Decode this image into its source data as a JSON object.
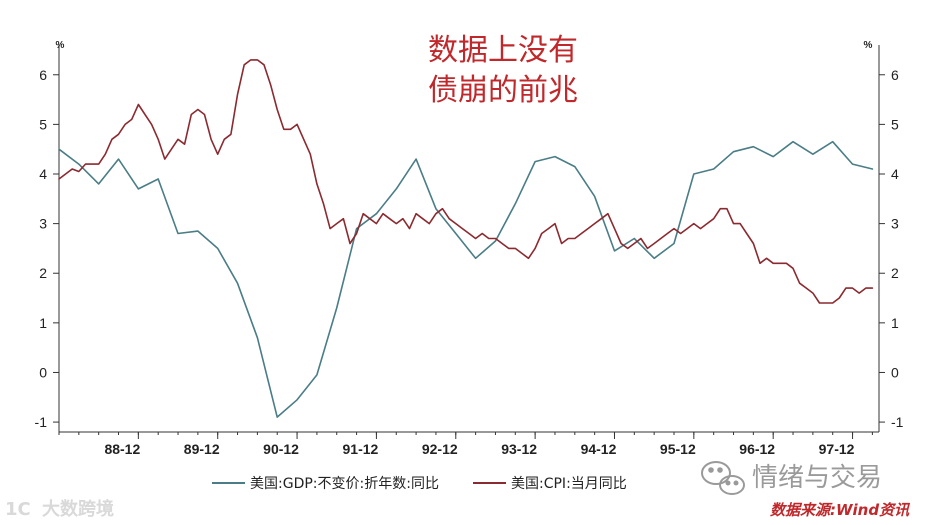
{
  "chart_data": {
    "type": "line",
    "annotation": [
      "数据上没有",
      "债崩的前兆"
    ],
    "y_unit_left": "%",
    "y_unit_right": "%",
    "ylim": [
      -1.2,
      6.6
    ],
    "yticks": [
      -1,
      0,
      1,
      2,
      3,
      4,
      5,
      6
    ],
    "xlim": [
      0,
      124
    ],
    "x_ticks": [
      {
        "label": "88-12",
        "x": 12
      },
      {
        "label": "89-12",
        "x": 24
      },
      {
        "label": "90-12",
        "x": 36
      },
      {
        "label": "91-12",
        "x": 48
      },
      {
        "label": "92-12",
        "x": 60
      },
      {
        "label": "93-12",
        "x": 72
      },
      {
        "label": "94-12",
        "x": 84
      },
      {
        "label": "95-12",
        "x": 96
      },
      {
        "label": "96-12",
        "x": 108
      },
      {
        "label": "97-12",
        "x": 120
      }
    ],
    "series": [
      {
        "name": "美国:GDP:不变价:折年数:同比",
        "color": "#4a7d85",
        "x": [
          0,
          3,
          6,
          9,
          12,
          15,
          18,
          21,
          24,
          27,
          30,
          33,
          36,
          39,
          42,
          45,
          48,
          51,
          54,
          57,
          60,
          63,
          66,
          69,
          72,
          75,
          78,
          81,
          84,
          87,
          90,
          93,
          96,
          99,
          102,
          105,
          108,
          111,
          114,
          117,
          120,
          123
        ],
        "values": [
          4.5,
          4.2,
          3.8,
          4.3,
          3.7,
          3.9,
          2.8,
          2.85,
          2.5,
          1.8,
          0.7,
          -0.9,
          -0.55,
          -0.05,
          1.3,
          2.9,
          3.2,
          3.7,
          4.3,
          3.3,
          2.8,
          2.3,
          2.65,
          3.4,
          4.25,
          4.35,
          4.15,
          3.55,
          2.45,
          2.7,
          2.3,
          2.6,
          4.0,
          4.1,
          4.45,
          4.55,
          4.35,
          4.65,
          4.4,
          4.65,
          4.2,
          4.1
        ]
      },
      {
        "name": "美国:CPI:当月同比",
        "color": "#8b2a30",
        "x": [
          0,
          1,
          2,
          3,
          4,
          5,
          6,
          7,
          8,
          9,
          10,
          11,
          12,
          13,
          14,
          15,
          16,
          17,
          18,
          19,
          20,
          21,
          22,
          23,
          24,
          25,
          26,
          27,
          28,
          29,
          30,
          31,
          32,
          33,
          34,
          35,
          36,
          37,
          38,
          39,
          40,
          41,
          42,
          43,
          44,
          45,
          46,
          47,
          48,
          49,
          50,
          51,
          52,
          53,
          54,
          55,
          56,
          57,
          58,
          59,
          60,
          61,
          62,
          63,
          64,
          65,
          66,
          67,
          68,
          69,
          70,
          71,
          72,
          73,
          74,
          75,
          76,
          77,
          78,
          79,
          80,
          81,
          82,
          83,
          84,
          85,
          86,
          87,
          88,
          89,
          90,
          91,
          92,
          93,
          94,
          95,
          96,
          97,
          98,
          99,
          100,
          101,
          102,
          103,
          104,
          105,
          106,
          107,
          108,
          109,
          110,
          111,
          112,
          113,
          114,
          115,
          116,
          117,
          118,
          119,
          120,
          121,
          122,
          123
        ],
        "values": [
          3.9,
          4.0,
          4.1,
          4.05,
          4.2,
          4.2,
          4.2,
          4.4,
          4.7,
          4.8,
          5.0,
          5.1,
          5.4,
          5.2,
          5.0,
          4.7,
          4.3,
          4.5,
          4.7,
          4.6,
          5.2,
          5.3,
          5.2,
          4.7,
          4.4,
          4.7,
          4.8,
          5.6,
          6.2,
          6.3,
          6.3,
          6.2,
          5.8,
          5.3,
          4.9,
          4.9,
          5.0,
          4.7,
          4.4,
          3.8,
          3.4,
          2.9,
          3.0,
          3.1,
          2.6,
          2.8,
          3.2,
          3.1,
          3.0,
          3.2,
          3.1,
          3.0,
          3.1,
          2.9,
          3.2,
          3.1,
          3.0,
          3.2,
          3.3,
          3.1,
          3.0,
          2.9,
          2.8,
          2.7,
          2.8,
          2.7,
          2.7,
          2.6,
          2.5,
          2.5,
          2.4,
          2.3,
          2.5,
          2.8,
          2.9,
          3.0,
          2.6,
          2.7,
          2.7,
          2.8,
          2.9,
          3.0,
          3.1,
          3.2,
          2.9,
          2.6,
          2.5,
          2.6,
          2.7,
          2.5,
          2.6,
          2.7,
          2.8,
          2.9,
          2.8,
          2.9,
          3.0,
          2.9,
          3.0,
          3.1,
          3.3,
          3.3,
          3.0,
          3.0,
          2.8,
          2.6,
          2.2,
          2.3,
          2.2,
          2.2,
          2.2,
          2.1,
          1.8,
          1.7,
          1.6,
          1.4,
          1.4,
          1.4,
          1.5,
          1.7,
          1.7,
          1.6,
          1.7,
          1.7
        ]
      }
    ]
  },
  "watermarks": {
    "wechat_name": "情绪与交易",
    "source": "数据来源:Wind资讯",
    "bottom_left": "大数跨境"
  }
}
